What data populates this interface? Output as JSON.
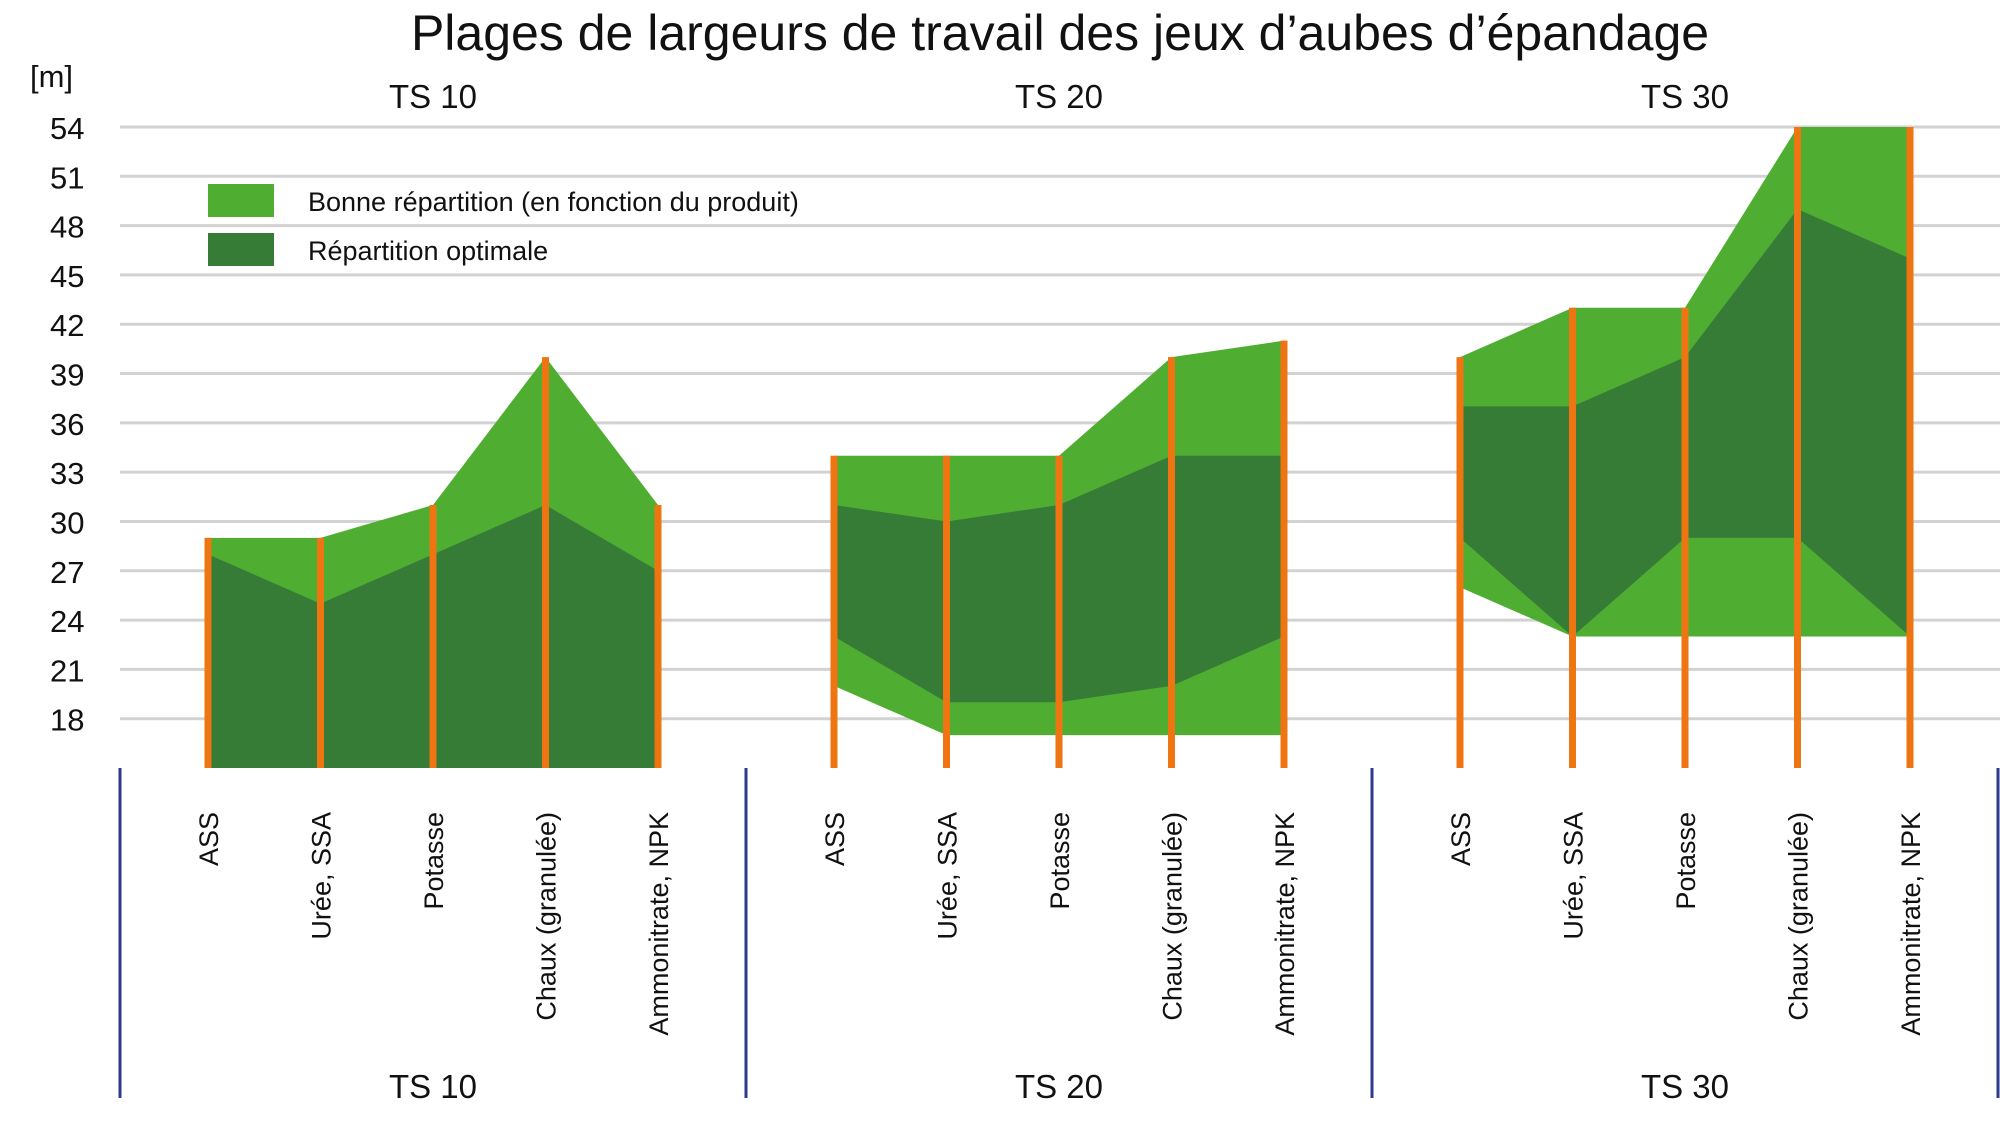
{
  "chart_data": {
    "type": "area",
    "title": "Plages de largeurs de travail des jeux d’aubes d’épandage",
    "ylabel": "[m]",
    "ylim": [
      15,
      54
    ],
    "yticks": [
      18,
      21,
      24,
      27,
      30,
      33,
      36,
      39,
      42,
      45,
      48,
      51,
      54
    ],
    "categories": [
      "ASS",
      "Urée, SSA",
      "Potasse",
      "Chaux (granulée)",
      "Ammonitrate, NPK"
    ],
    "colors": {
      "good": "#4fae32",
      "optimal": "#377c36",
      "bar": "#ee7512",
      "grid": "#d2d2d2",
      "separator": "#2e3a8c"
    },
    "legend": [
      {
        "key": "good",
        "label": "Bonne répartition (en fonction du produit)"
      },
      {
        "key": "optimal",
        "label": "Répartition optimale"
      }
    ],
    "groups": [
      {
        "name": "TS 10",
        "good_low": [
          15,
          15,
          15,
          15,
          15
        ],
        "good_high": [
          29,
          29,
          31,
          40,
          31
        ],
        "optimal_low": [
          15,
          15,
          15,
          15,
          15
        ],
        "optimal_high": [
          28,
          25,
          28,
          31,
          27
        ]
      },
      {
        "name": "TS 20",
        "good_low": [
          20,
          17,
          17,
          17,
          17
        ],
        "good_high": [
          34,
          34,
          34,
          40,
          41
        ],
        "optimal_low": [
          23,
          19,
          19,
          20,
          23
        ],
        "optimal_high": [
          31,
          30,
          31,
          34,
          34
        ]
      },
      {
        "name": "TS 30",
        "good_low": [
          26,
          23,
          23,
          23,
          23
        ],
        "good_high": [
          40,
          43,
          43,
          54,
          54
        ],
        "optimal_low": [
          29,
          23,
          29,
          29,
          23
        ],
        "optimal_high": [
          37,
          37,
          40,
          49,
          46
        ]
      }
    ]
  }
}
